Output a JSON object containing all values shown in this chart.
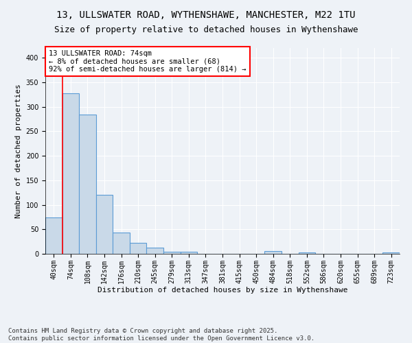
{
  "title": "13, ULLSWATER ROAD, WYTHENSHAWE, MANCHESTER, M22 1TU",
  "subtitle": "Size of property relative to detached houses in Wythenshawe",
  "xlabel": "Distribution of detached houses by size in Wythenshawe",
  "ylabel": "Number of detached properties",
  "bar_labels": [
    "40sqm",
    "74sqm",
    "108sqm",
    "142sqm",
    "176sqm",
    "210sqm",
    "245sqm",
    "279sqm",
    "313sqm",
    "347sqm",
    "381sqm",
    "415sqm",
    "450sqm",
    "484sqm",
    "518sqm",
    "552sqm",
    "586sqm",
    "620sqm",
    "655sqm",
    "689sqm",
    "723sqm"
  ],
  "bar_values": [
    74,
    328,
    284,
    121,
    44,
    23,
    13,
    4,
    4,
    0,
    0,
    0,
    0,
    5,
    0,
    3,
    0,
    0,
    0,
    0,
    3
  ],
  "bar_color": "#c9d9e8",
  "bar_edge_color": "#5b9bd5",
  "red_line_x": 1,
  "annotation_text": "13 ULLSWATER ROAD: 74sqm\n← 8% of detached houses are smaller (68)\n92% of semi-detached houses are larger (814) →",
  "annotation_box_color": "white",
  "annotation_box_edge_color": "red",
  "ylim": [
    0,
    420
  ],
  "yticks": [
    0,
    50,
    100,
    150,
    200,
    250,
    300,
    350,
    400
  ],
  "footer_text": "Contains HM Land Registry data © Crown copyright and database right 2025.\nContains public sector information licensed under the Open Government Licence v3.0.",
  "background_color": "#eef2f7",
  "grid_color": "#ffffff",
  "title_fontsize": 10,
  "subtitle_fontsize": 9,
  "axis_label_fontsize": 8,
  "tick_fontsize": 7,
  "annotation_fontsize": 7.5,
  "footer_fontsize": 6.5
}
